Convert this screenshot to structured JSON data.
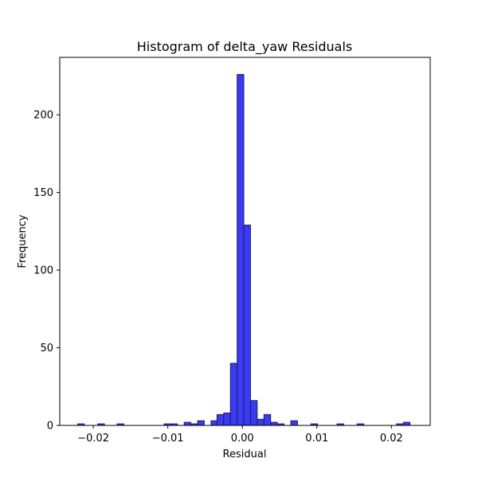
{
  "chart_data": {
    "type": "bar",
    "title": "Histogram of delta_yaw Residuals",
    "xlabel": "Residual",
    "ylabel": "Frequency",
    "xlim": [
      -0.0245,
      0.0252
    ],
    "ylim": [
      0,
      237
    ],
    "x_ticks": [
      -0.02,
      -0.01,
      0.0,
      0.01,
      0.02
    ],
    "x_tick_labels": [
      "−0.02",
      "−0.01",
      "0.00",
      "0.01",
      "0.02"
    ],
    "y_ticks": [
      0,
      50,
      100,
      150,
      200
    ],
    "y_tick_labels": [
      "0",
      "50",
      "100",
      "150",
      "200"
    ],
    "bin_width": 0.00089,
    "bins": [
      {
        "x0": -0.0221,
        "count": 1
      },
      {
        "x0": -0.0194,
        "count": 1
      },
      {
        "x0": -0.0168,
        "count": 1
      },
      {
        "x0": -0.0105,
        "count": 1
      },
      {
        "x0": -0.0096,
        "count": 1
      },
      {
        "x0": -0.0078,
        "count": 2
      },
      {
        "x0": -0.0069,
        "count": 1
      },
      {
        "x0": -0.006,
        "count": 3
      },
      {
        "x0": -0.0042,
        "count": 3
      },
      {
        "x0": -0.0034,
        "count": 7
      },
      {
        "x0": -0.0025,
        "count": 8
      },
      {
        "x0": -0.0016,
        "count": 40
      },
      {
        "x0": -0.0007,
        "count": 226
      },
      {
        "x0": 0.0002,
        "count": 129
      },
      {
        "x0": 0.0011,
        "count": 16
      },
      {
        "x0": 0.002,
        "count": 4
      },
      {
        "x0": 0.0029,
        "count": 7
      },
      {
        "x0": 0.0038,
        "count": 2
      },
      {
        "x0": 0.0047,
        "count": 1
      },
      {
        "x0": 0.0065,
        "count": 3
      },
      {
        "x0": 0.0092,
        "count": 1
      },
      {
        "x0": 0.0127,
        "count": 1
      },
      {
        "x0": 0.0154,
        "count": 1
      },
      {
        "x0": 0.0207,
        "count": 1
      },
      {
        "x0": 0.0216,
        "count": 2
      }
    ],
    "grid": false,
    "legend": "none"
  }
}
